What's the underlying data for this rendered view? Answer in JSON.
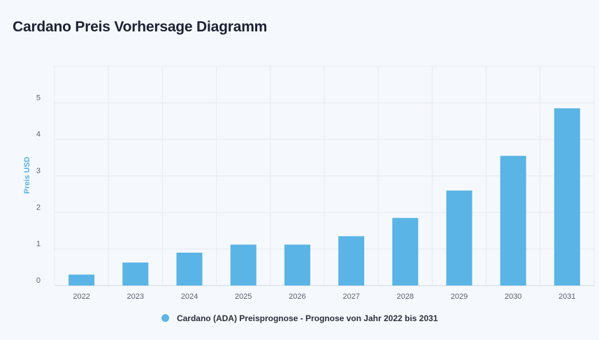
{
  "page": {
    "title": "Cardano Preis Vorhersage Diagramm"
  },
  "chart_data": {
    "type": "bar",
    "ylabel": "Preis USD",
    "xlabel": "",
    "categories": [
      "2022",
      "2023",
      "2024",
      "2025",
      "2026",
      "2027",
      "2028",
      "2029",
      "2030",
      "2031"
    ],
    "series": [
      {
        "name": "Cardano (ADA) Preisprognose - Prognose von Jahr 2022 bis 2031",
        "values": [
          0.3,
          0.63,
          0.9,
          1.12,
          1.12,
          1.35,
          1.85,
          2.6,
          3.55,
          4.85
        ]
      }
    ],
    "ylim": [
      0,
      6
    ],
    "yticks": [
      0,
      1,
      2,
      3,
      4,
      5
    ],
    "grid": true,
    "legend_position": "bottom",
    "colors": {
      "bar": "#5ab4e5",
      "ylabel": "#5ab4e5",
      "grid": "#e6ebf2"
    }
  }
}
